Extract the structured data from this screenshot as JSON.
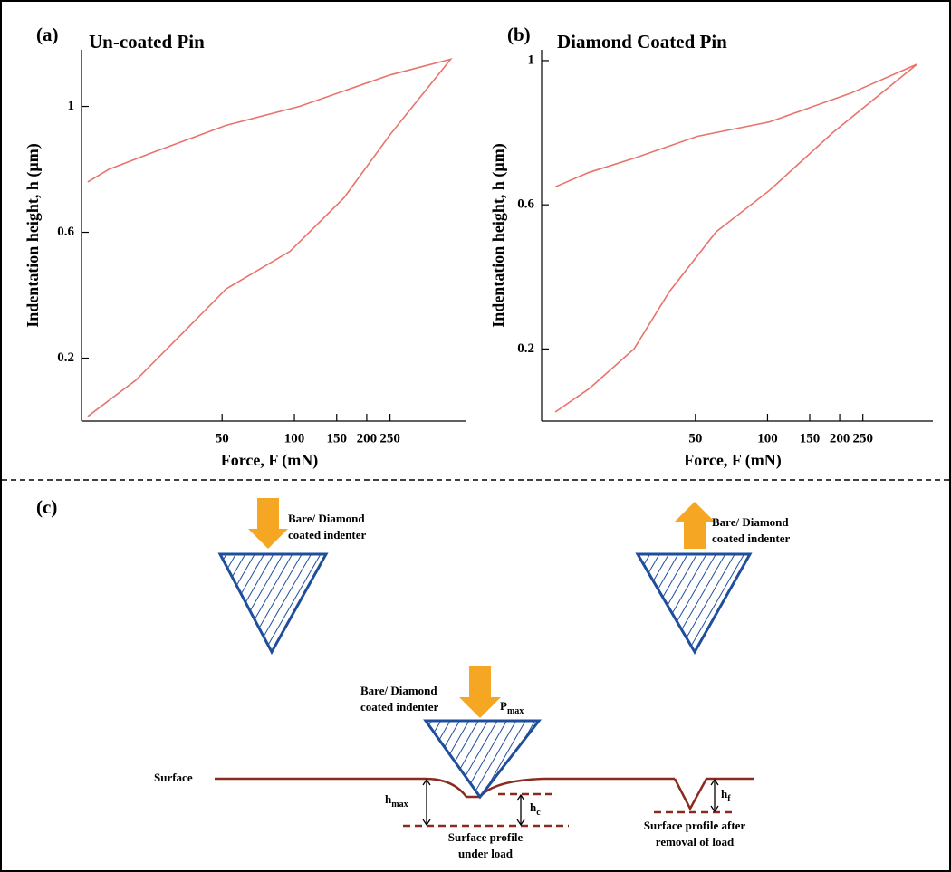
{
  "chart_data": [
    {
      "type": "line",
      "panel_label": "(a)",
      "title": "Un-coated Pin",
      "x_label": "Force, F (mN)",
      "y_label": "Indentation height, h (µm)",
      "xscale": "log",
      "xlim": [
        13,
        520
      ],
      "xticks": [
        50,
        100,
        150,
        200,
        250
      ],
      "ylim": [
        0,
        1.18
      ],
      "yticks": [
        0.2,
        0.6,
        1.0
      ],
      "x": [
        13.8,
        21.9,
        33.8,
        52,
        96,
        161,
        250,
        447,
        250,
        105,
        52,
        26,
        16.9,
        13.8
      ],
      "series": [
        {
          "color": "#e8736b",
          "values": [
            0.015,
            0.13,
            0.275,
            0.42,
            0.54,
            0.71,
            0.91,
            1.15,
            1.1,
            1.0,
            0.94,
            0.855,
            0.8,
            0.76
          ]
        }
      ]
    },
    {
      "type": "line",
      "panel_label": "(b)",
      "title": "Diamond Coated Pin",
      "x_label": "Force, F (mN)",
      "y_label": "Indentation height, h (µm)",
      "xscale": "log",
      "xlim": [
        11.4,
        490
      ],
      "xticks": [
        50,
        100,
        150,
        200,
        250
      ],
      "ylim": [
        0,
        1.03
      ],
      "yticks": [
        0.2,
        0.6,
        1.0
      ],
      "x": [
        13,
        18,
        27.7,
        39,
        61,
        102,
        187,
        421,
        223,
        102,
        51,
        28,
        18,
        13
      ],
      "series": [
        {
          "color": "#e8736b",
          "values": [
            0.025,
            0.09,
            0.2,
            0.36,
            0.525,
            0.64,
            0.8,
            0.99,
            0.91,
            0.83,
            0.79,
            0.73,
            0.69,
            0.65
          ]
        }
      ]
    }
  ],
  "diagram": {
    "panel_label": "(c)",
    "indenter_1": [
      "Bare/ Diamond",
      "coated indenter"
    ],
    "indenter_2": [
      "Bare/ Diamond",
      "coated indenter"
    ],
    "indenter_3": [
      "Bare/ Diamond",
      "coated indenter"
    ],
    "load": {
      "main": "P",
      "sub": "max"
    },
    "surface": "Surface",
    "h_max": {
      "main": "h",
      "sub": "max"
    },
    "h_c": {
      "main": "h",
      "sub": "c"
    },
    "h_f": {
      "main": "h",
      "sub": "f"
    },
    "profile_under_load": [
      "Surface profile",
      "under load"
    ],
    "profile_after": [
      "Surface profile after",
      "removal of load"
    ]
  }
}
